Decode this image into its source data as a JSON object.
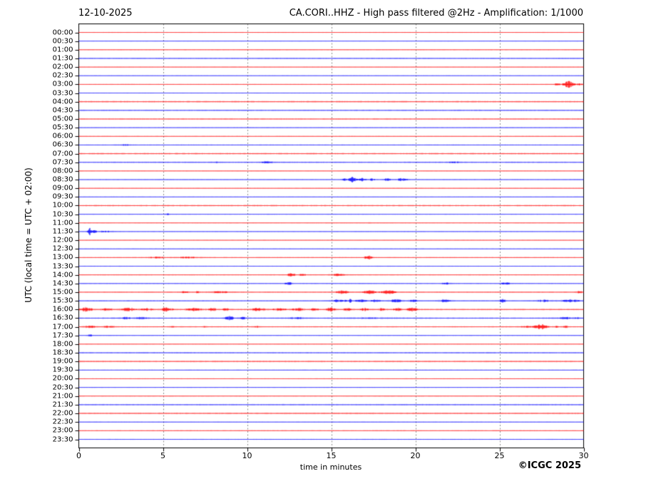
{
  "header": {
    "date": "12-10-2025",
    "title": "CA.CORI..HHZ - High pass filtered @2Hz - Amplification: 1/1000"
  },
  "footer": {
    "copyright": "©ICGC 2025"
  },
  "axes": {
    "x_label": "time in minutes",
    "y_label": "UTC (local time = UTC + 02:00)",
    "x_ticks": [
      0,
      5,
      10,
      15,
      20,
      25,
      30
    ],
    "x_range": [
      0,
      30
    ],
    "grid_minutes": [
      5,
      10,
      15,
      20,
      25
    ],
    "grid_style": "dashed-vertical"
  },
  "colors": {
    "trace_red": "#ff0000",
    "trace_blue": "#0000ff",
    "frame": "#000000",
    "grid": "#707070",
    "background": "#ffffff"
  },
  "chart_data": {
    "type": "line",
    "subtype": "helicorder",
    "title": "CA.CORI..HHZ - High pass filtered @2Hz - Amplification: 1/1000",
    "xlabel": "time in minutes",
    "ylabel": "UTC (local time = UTC + 02:00)",
    "xlim": [
      0,
      30
    ],
    "minutes_per_row": 30,
    "event_format": "[start_minute, end_minute, amplitude_px]",
    "rows": [
      {
        "label": "00:00",
        "color": "red",
        "noise": 0.5,
        "events": []
      },
      {
        "label": "00:30",
        "color": "blue",
        "noise": 0.4,
        "events": []
      },
      {
        "label": "01:00",
        "color": "red",
        "noise": 0.55,
        "events": []
      },
      {
        "label": "01:30",
        "color": "blue",
        "noise": 0.7,
        "events": []
      },
      {
        "label": "02:00",
        "color": "red",
        "noise": 0.45,
        "events": []
      },
      {
        "label": "02:30",
        "color": "blue",
        "noise": 0.45,
        "events": []
      },
      {
        "label": "03:00",
        "color": "red",
        "noise": 0.5,
        "events": [
          [
            28.2,
            28.7,
            1.6
          ],
          [
            28.75,
            29.45,
            3.8
          ],
          [
            29.5,
            30,
            1.0
          ]
        ]
      },
      {
        "label": "03:30",
        "color": "blue",
        "noise": 0.45,
        "events": []
      },
      {
        "label": "04:00",
        "color": "red",
        "noise": 1.0,
        "events": []
      },
      {
        "label": "04:30",
        "color": "blue",
        "noise": 0.8,
        "events": []
      },
      {
        "label": "05:00",
        "color": "red",
        "noise": 0.8,
        "events": []
      },
      {
        "label": "05:30",
        "color": "blue",
        "noise": 0.5,
        "events": []
      },
      {
        "label": "06:00",
        "color": "red",
        "noise": 0.5,
        "events": []
      },
      {
        "label": "06:30",
        "color": "blue",
        "noise": 0.6,
        "events": [
          [
            2.3,
            3.2,
            0.8
          ]
        ]
      },
      {
        "label": "07:00",
        "color": "red",
        "noise": 1.0,
        "events": []
      },
      {
        "label": "07:30",
        "color": "blue",
        "noise": 0.8,
        "events": [
          [
            7.9,
            8.6,
            0.8
          ],
          [
            10.7,
            11.6,
            1.2
          ],
          [
            21.8,
            22.8,
            1.1
          ]
        ]
      },
      {
        "label": "08:00",
        "color": "red",
        "noise": 0.5,
        "events": []
      },
      {
        "label": "08:30",
        "color": "blue",
        "noise": 0.55,
        "events": [
          [
            15.6,
            15.9,
            1.5
          ],
          [
            16.0,
            16.5,
            3.5
          ],
          [
            16.6,
            17.1,
            1.8
          ],
          [
            17.2,
            17.6,
            1.4
          ],
          [
            18.0,
            18.6,
            1.5
          ],
          [
            18.8,
            19.6,
            1.7
          ]
        ]
      },
      {
        "label": "09:00",
        "color": "red",
        "noise": 0.5,
        "events": []
      },
      {
        "label": "09:30",
        "color": "blue",
        "noise": 0.45,
        "events": []
      },
      {
        "label": "10:00",
        "color": "red",
        "noise": 1.0,
        "events": []
      },
      {
        "label": "10:30",
        "color": "blue",
        "noise": 0.5,
        "events": [
          [
            5.05,
            5.35,
            1.4
          ]
        ]
      },
      {
        "label": "11:00",
        "color": "red",
        "noise": 0.5,
        "events": [
          [
            17.1,
            17.4,
            0.6
          ]
        ]
      },
      {
        "label": "11:30",
        "color": "blue",
        "noise": 0.5,
        "events": [
          [
            0.45,
            0.75,
            4.5
          ],
          [
            0.75,
            1.05,
            2.2
          ],
          [
            1.05,
            2.2,
            0.9
          ]
        ]
      },
      {
        "label": "12:00",
        "color": "red",
        "noise": 0.45,
        "events": []
      },
      {
        "label": "12:30",
        "color": "blue",
        "noise": 0.45,
        "events": []
      },
      {
        "label": "13:00",
        "color": "red",
        "noise": 0.6,
        "events": [
          [
            3.9,
            5.3,
            0.9
          ],
          [
            5.4,
            7.4,
            0.9
          ],
          [
            16.9,
            17.5,
            2.2
          ]
        ]
      },
      {
        "label": "13:30",
        "color": "blue",
        "noise": 0.5,
        "events": []
      },
      {
        "label": "14:00",
        "color": "red",
        "noise": 0.6,
        "events": [
          [
            12.3,
            12.9,
            1.9
          ],
          [
            13.05,
            13.5,
            1.6
          ],
          [
            14.8,
            15.9,
            1.4
          ]
        ]
      },
      {
        "label": "14:30",
        "color": "blue",
        "noise": 0.55,
        "events": [
          [
            12.2,
            12.7,
            1.7
          ],
          [
            21.5,
            22.2,
            1.1
          ],
          [
            25.0,
            25.7,
            1.4
          ]
        ]
      },
      {
        "label": "15:00",
        "color": "red",
        "noise": 0.7,
        "events": [
          [
            6.0,
            6.6,
            1.2
          ],
          [
            6.8,
            7.2,
            1.0
          ],
          [
            7.5,
            9.3,
            1.0
          ],
          [
            15.2,
            16.1,
            1.8
          ],
          [
            16.7,
            17.8,
            1.9
          ],
          [
            17.9,
            18.9,
            2.1
          ],
          [
            29.5,
            30,
            1.4
          ]
        ]
      },
      {
        "label": "15:30",
        "color": "blue",
        "noise": 0.7,
        "events": [
          [
            14.9,
            16.0,
            1.5
          ],
          [
            16.02,
            16.2,
            3.0
          ],
          [
            16.3,
            17.2,
            1.4
          ],
          [
            17.3,
            18.0,
            1.4
          ],
          [
            18.3,
            19.3,
            1.6
          ],
          [
            19.5,
            20.3,
            1.3
          ],
          [
            21.2,
            22.2,
            1.4
          ],
          [
            24.9,
            25.4,
            2.0
          ],
          [
            27.0,
            28.2,
            1.2
          ],
          [
            28.5,
            30,
            1.3
          ]
        ]
      },
      {
        "label": "16:00",
        "color": "red",
        "noise": 0.9,
        "events": [
          [
            0,
            0.9,
            2.2
          ],
          [
            1.3,
            2.1,
            1.6
          ],
          [
            2.4,
            3.4,
            2.0
          ],
          [
            3.6,
            4.5,
            1.5
          ],
          [
            4.8,
            5.6,
            2.2
          ],
          [
            6.2,
            7.4,
            1.6
          ],
          [
            7.6,
            8.2,
            1.8
          ],
          [
            8.5,
            9.0,
            1.5
          ],
          [
            10.2,
            11.1,
            2.0
          ],
          [
            11.4,
            12.4,
            1.4
          ],
          [
            12.6,
            13.4,
            1.6
          ],
          [
            13.7,
            14.4,
            1.6
          ],
          [
            14.6,
            15.3,
            2.0
          ],
          [
            15.6,
            16.4,
            1.5
          ],
          [
            16.6,
            17.4,
            1.6
          ],
          [
            17.6,
            18.3,
            1.4
          ],
          [
            18.6,
            19.2,
            1.5
          ],
          [
            19.4,
            20.2,
            2.0
          ]
        ]
      },
      {
        "label": "16:30",
        "color": "blue",
        "noise": 0.8,
        "events": [
          [
            2.3,
            3.1,
            1.4
          ],
          [
            3.3,
            4.2,
            1.2
          ],
          [
            8.6,
            9.3,
            2.2
          ],
          [
            9.5,
            10.0,
            1.2
          ],
          [
            12.2,
            13.8,
            0.9
          ],
          [
            15.5,
            19.5,
            0.7
          ],
          [
            28.0,
            30,
            1.1
          ]
        ]
      },
      {
        "label": "17:00",
        "color": "red",
        "noise": 0.7,
        "events": [
          [
            0.2,
            1.1,
            1.5
          ],
          [
            1.3,
            2.3,
            1.2
          ],
          [
            5.3,
            5.8,
            0.9
          ],
          [
            7.3,
            7.6,
            0.8
          ],
          [
            10.3,
            10.8,
            0.9
          ],
          [
            26.2,
            26.9,
            1.3
          ],
          [
            27.0,
            27.9,
            3.0
          ],
          [
            28.1,
            28.5,
            1.2
          ],
          [
            28.7,
            29.1,
            1.4
          ]
        ]
      },
      {
        "label": "17:30",
        "color": "blue",
        "noise": 0.5,
        "events": [
          [
            0.5,
            0.85,
            1.4
          ]
        ]
      },
      {
        "label": "18:00",
        "color": "red",
        "noise": 0.5,
        "events": []
      },
      {
        "label": "18:30",
        "color": "blue",
        "noise": 0.8,
        "events": []
      },
      {
        "label": "19:00",
        "color": "red",
        "noise": 0.95,
        "events": []
      },
      {
        "label": "19:30",
        "color": "blue",
        "noise": 0.5,
        "events": []
      },
      {
        "label": "20:00",
        "color": "red",
        "noise": 0.5,
        "events": []
      },
      {
        "label": "20:30",
        "color": "blue",
        "noise": 0.45,
        "events": []
      },
      {
        "label": "21:00",
        "color": "red",
        "noise": 0.55,
        "events": []
      },
      {
        "label": "21:30",
        "color": "blue",
        "noise": 0.85,
        "events": []
      },
      {
        "label": "22:00",
        "color": "red",
        "noise": 0.9,
        "events": []
      },
      {
        "label": "22:30",
        "color": "blue",
        "noise": 0.45,
        "events": []
      },
      {
        "label": "23:00",
        "color": "red",
        "noise": 0.6,
        "events": []
      },
      {
        "label": "23:30",
        "color": "blue",
        "noise": 0.5,
        "events": []
      }
    ]
  }
}
